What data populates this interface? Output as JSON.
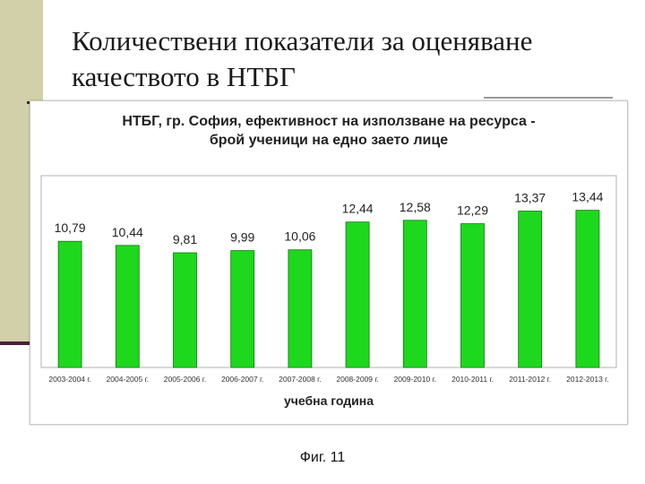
{
  "slide": {
    "title_line1": "Количествени показатели за оценяване",
    "title_line2": "качеството в НТБГ",
    "caption": "Фиг. 11"
  },
  "colors": {
    "bar_fill": "#1ed81e",
    "bar_stroke": "#0a7a0a",
    "left_strip": "#d2d0a8",
    "accent_line": "#4a2040"
  },
  "chart_data": {
    "type": "bar",
    "title_line1": "НТБГ, гр. София, ефективност на използване на ресурса -",
    "title_line2": "брой ученици на едно заето лице",
    "xlabel": "учебна година",
    "ylabel": "",
    "categories": [
      "2003-2004 г.",
      "2004-2005 г.",
      "2005-2006 г.",
      "2006-2007 г.",
      "2007-2008 г.",
      "2008-2009 г.",
      "2009-2010 г.",
      "2010-2011 г.",
      "2011-2012 г.",
      "2012-2013 г."
    ],
    "values": [
      10.79,
      10.44,
      9.81,
      9.99,
      10.06,
      12.44,
      12.58,
      12.29,
      13.37,
      13.44
    ],
    "value_labels": [
      "10,79",
      "10,44",
      "9,81",
      "9,99",
      "10,06",
      "12,44",
      "12,58",
      "12,29",
      "13,37",
      "13,44"
    ],
    "ylim": [
      0,
      16
    ],
    "grid": false,
    "legend": "none"
  }
}
